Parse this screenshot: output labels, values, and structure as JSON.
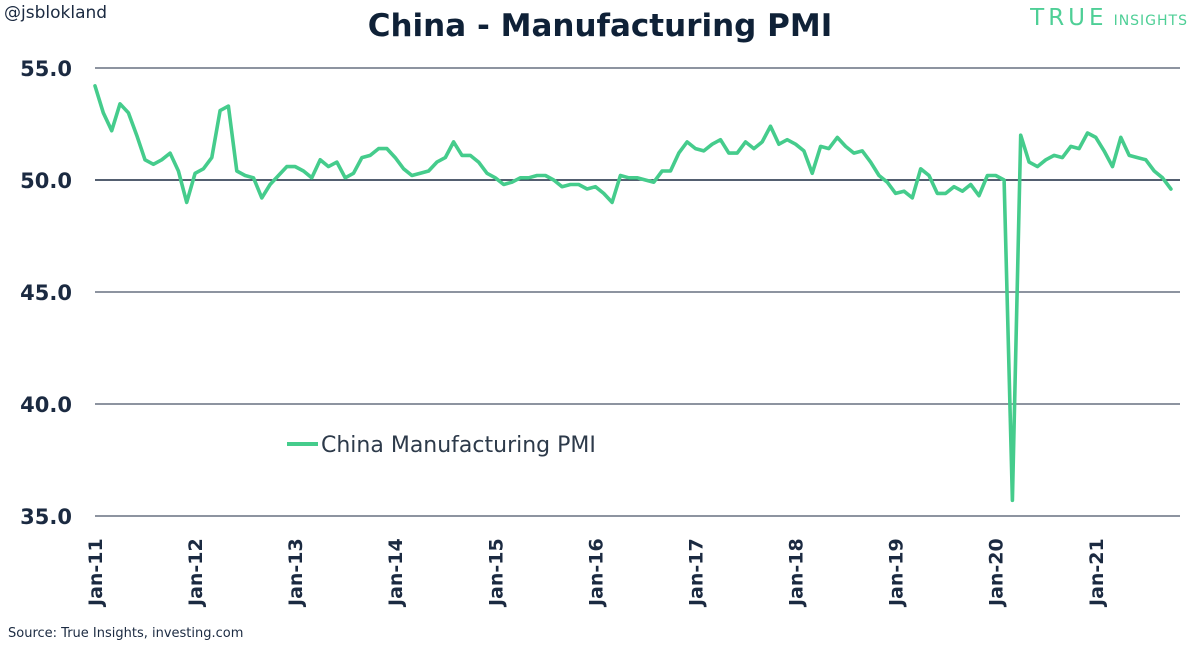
{
  "header": {
    "handle": "@jsblokland",
    "brand_main": "TRUE",
    "brand_sub": "INSIGHTS"
  },
  "footer": {
    "source": "Source: True Insights, investing.com"
  },
  "chart_data": {
    "type": "line",
    "title": "China - Manufacturing PMI",
    "xlabel": "",
    "ylabel": "",
    "ylim": [
      35,
      55
    ],
    "yticks": [
      "55.0",
      "50.0",
      "45.0",
      "40.0",
      "35.0"
    ],
    "xticks": [
      "Jan-11",
      "Jan-12",
      "Jan-13",
      "Jan-14",
      "Jan-15",
      "Jan-16",
      "Jan-17",
      "Jan-18",
      "Jan-19",
      "Jan-20",
      "Jan-21"
    ],
    "grid": "horizontal",
    "legend_position": "lower-left",
    "colors": {
      "series": "#45cc8c",
      "grid": "#1b2a41",
      "text": "#1b2a41"
    },
    "x": [
      "Jan-11",
      "Feb-11",
      "Mar-11",
      "Apr-11",
      "May-11",
      "Jun-11",
      "Jul-11",
      "Aug-11",
      "Sep-11",
      "Oct-11",
      "Nov-11",
      "Dec-11",
      "Jan-12",
      "Feb-12",
      "Mar-12",
      "Apr-12",
      "May-12",
      "Jun-12",
      "Jul-12",
      "Aug-12",
      "Sep-12",
      "Oct-12",
      "Nov-12",
      "Dec-12",
      "Jan-13",
      "Feb-13",
      "Mar-13",
      "Apr-13",
      "May-13",
      "Jun-13",
      "Jul-13",
      "Aug-13",
      "Sep-13",
      "Oct-13",
      "Nov-13",
      "Dec-13",
      "Jan-14",
      "Feb-14",
      "Mar-14",
      "Apr-14",
      "May-14",
      "Jun-14",
      "Jul-14",
      "Aug-14",
      "Sep-14",
      "Oct-14",
      "Nov-14",
      "Dec-14",
      "Jan-15",
      "Feb-15",
      "Mar-15",
      "Apr-15",
      "May-15",
      "Jun-15",
      "Jul-15",
      "Aug-15",
      "Sep-15",
      "Oct-15",
      "Nov-15",
      "Dec-15",
      "Jan-16",
      "Feb-16",
      "Mar-16",
      "Apr-16",
      "May-16",
      "Jun-16",
      "Jul-16",
      "Aug-16",
      "Sep-16",
      "Oct-16",
      "Nov-16",
      "Dec-16",
      "Jan-17",
      "Feb-17",
      "Mar-17",
      "Apr-17",
      "May-17",
      "Jun-17",
      "Jul-17",
      "Aug-17",
      "Sep-17",
      "Oct-17",
      "Nov-17",
      "Dec-17",
      "Jan-18",
      "Feb-18",
      "Mar-18",
      "Apr-18",
      "May-18",
      "Jun-18",
      "Jul-18",
      "Aug-18",
      "Sep-18",
      "Oct-18",
      "Nov-18",
      "Dec-18",
      "Jan-19",
      "Feb-19",
      "Mar-19",
      "Apr-19",
      "May-19",
      "Jun-19",
      "Jul-19",
      "Aug-19",
      "Sep-19",
      "Oct-19",
      "Nov-19",
      "Dec-19",
      "Jan-20",
      "Feb-20",
      "Mar-20",
      "Apr-20",
      "May-20",
      "Jun-20",
      "Jul-20",
      "Aug-20",
      "Sep-20",
      "Oct-20",
      "Nov-20",
      "Dec-20",
      "Jan-21",
      "Feb-21",
      "Mar-21",
      "Apr-21",
      "May-21",
      "Jun-21",
      "Jul-21",
      "Aug-21",
      "Sep-21",
      "Oct-21"
    ],
    "series": [
      {
        "name": "China Manufacturing PMI",
        "values": [
          54.2,
          53.0,
          52.2,
          53.4,
          53.0,
          52.0,
          50.9,
          50.7,
          50.9,
          51.2,
          50.4,
          49.0,
          50.3,
          50.5,
          51.0,
          53.1,
          53.3,
          50.4,
          50.2,
          50.1,
          49.2,
          49.8,
          50.2,
          50.6,
          50.6,
          50.4,
          50.1,
          50.9,
          50.6,
          50.8,
          50.1,
          50.3,
          51.0,
          51.1,
          51.4,
          51.4,
          51.0,
          50.5,
          50.2,
          50.3,
          50.4,
          50.8,
          51.0,
          51.7,
          51.1,
          51.1,
          50.8,
          50.3,
          50.1,
          49.8,
          49.9,
          50.1,
          50.1,
          50.2,
          50.2,
          50.0,
          49.7,
          49.8,
          49.8,
          49.6,
          49.7,
          49.4,
          49.0,
          50.2,
          50.1,
          50.1,
          50.0,
          49.9,
          50.4,
          50.4,
          51.2,
          51.7,
          51.4,
          51.3,
          51.6,
          51.8,
          51.2,
          51.2,
          51.7,
          51.4,
          51.7,
          52.4,
          51.6,
          51.8,
          51.6,
          51.3,
          50.3,
          51.5,
          51.4,
          51.9,
          51.5,
          51.2,
          51.3,
          50.8,
          50.2,
          49.9,
          49.4,
          49.5,
          49.2,
          50.5,
          50.2,
          49.4,
          49.4,
          49.7,
          49.5,
          49.8,
          49.3,
          50.2,
          50.2,
          50.0,
          35.7,
          52.0,
          50.8,
          50.6,
          50.9,
          51.1,
          51.0,
          51.5,
          51.4,
          52.1,
          51.9,
          51.3,
          50.6,
          51.9,
          51.1,
          51.0,
          50.9,
          50.4,
          50.1,
          49.6
        ]
      }
    ]
  }
}
